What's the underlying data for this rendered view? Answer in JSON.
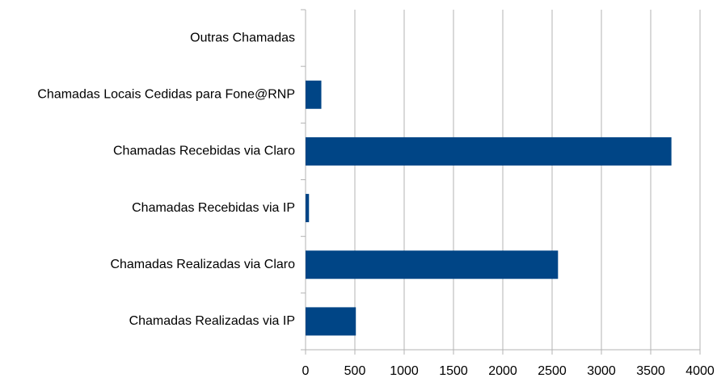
{
  "chart_data": {
    "type": "barh",
    "categories": [
      "Outras Chamadas",
      "Chamadas Locais Cedidas para Fone@RNP",
      "Chamadas Recebidas via Claro",
      "Chamadas Recebidas via IP",
      "Chamadas Realizadas via Claro",
      "Chamadas Realizadas via IP"
    ],
    "values": [
      0,
      160,
      3710,
      35,
      2560,
      510
    ],
    "color": "#004586",
    "xlim": [
      0,
      4000
    ],
    "xticks": [
      0,
      500,
      1000,
      1500,
      2000,
      2500,
      3000,
      3500,
      4000
    ],
    "grid": true
  }
}
